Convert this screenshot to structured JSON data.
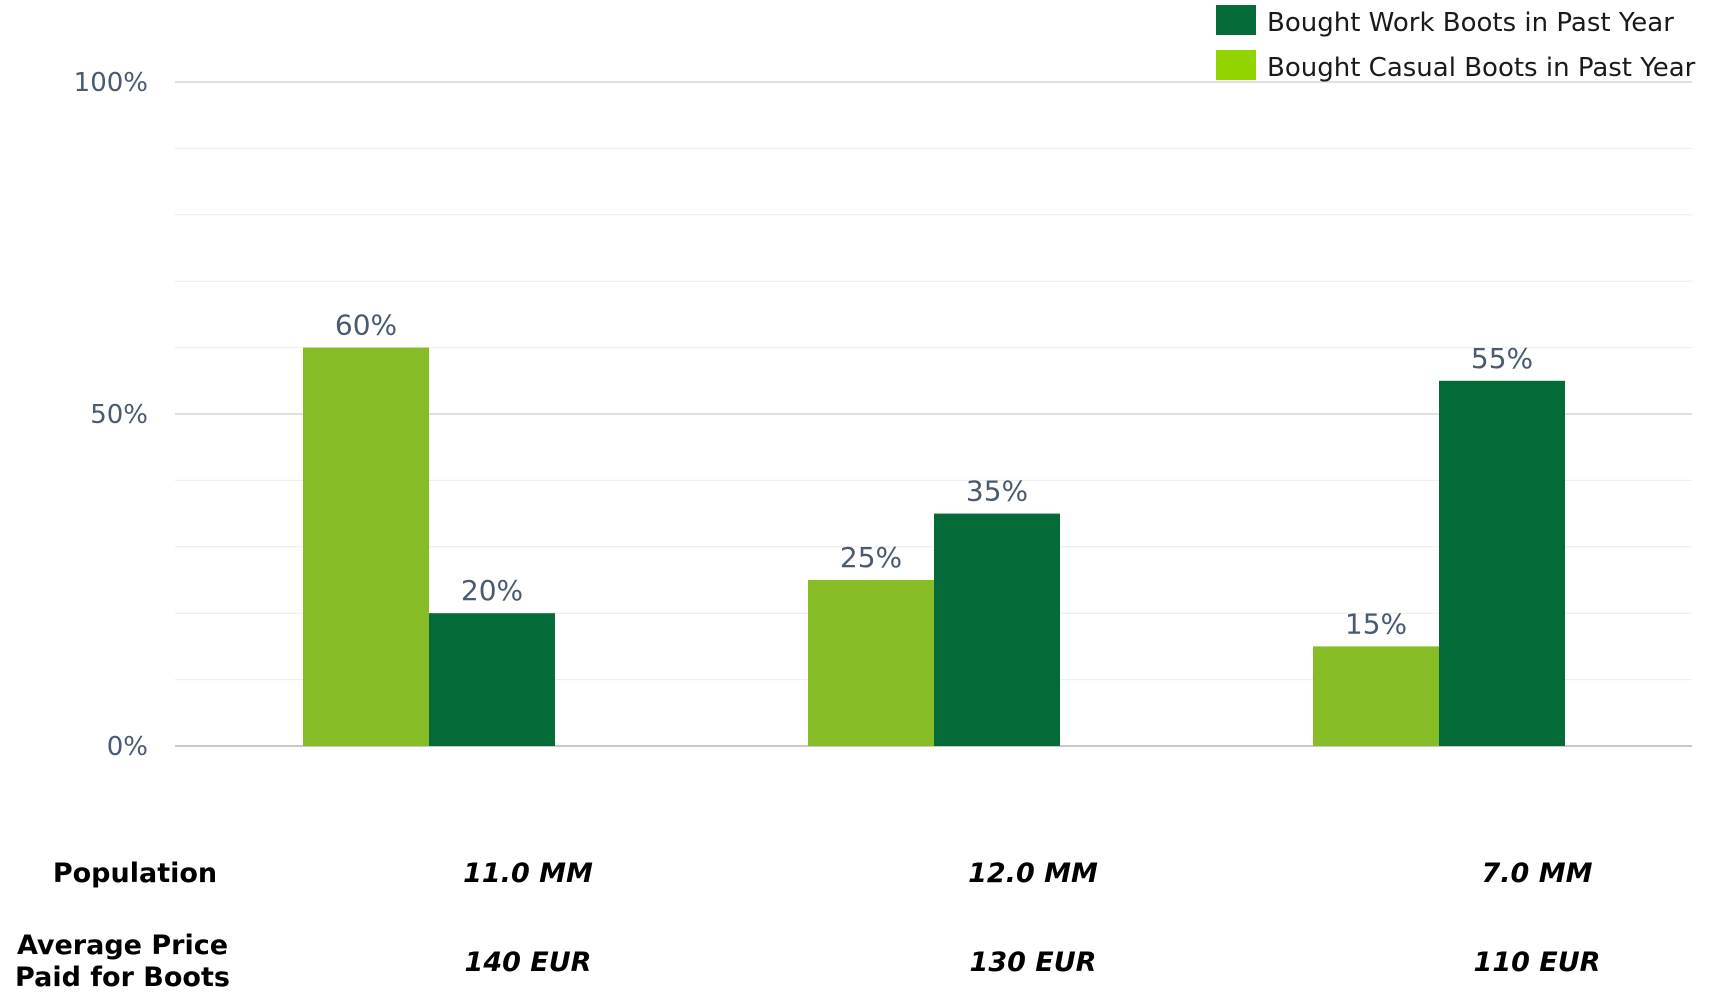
{
  "chart_data": {
    "type": "bar",
    "categories": [
      "11.0 MM",
      "12.0 MM",
      "7.0 MM"
    ],
    "series": [
      {
        "name": "Bought Casual Boots in Past Year",
        "color": "#86bc25",
        "values": [
          60,
          25,
          15
        ]
      },
      {
        "name": "Bought Work Boots in Past Year",
        "color": "#046a38",
        "values": [
          20,
          35,
          55
        ]
      }
    ],
    "legend_swatch_colors": [
      "#046a38",
      "#92d400"
    ],
    "ylim": [
      0,
      100
    ],
    "yticks": [
      0,
      50,
      100
    ],
    "ytick_labels": [
      "0%",
      "50%",
      "100%"
    ],
    "value_suffix": "%",
    "grid": true,
    "legend": "top-right"
  },
  "table": {
    "population_label": "Population",
    "price_label_line1": "Average Price",
    "price_label_line2": "Paid for Boots",
    "population": [
      "11.0 MM",
      "12.0 MM",
      "7.0 MM"
    ],
    "price": [
      "140 EUR",
      "130 EUR",
      "110 EUR"
    ]
  }
}
